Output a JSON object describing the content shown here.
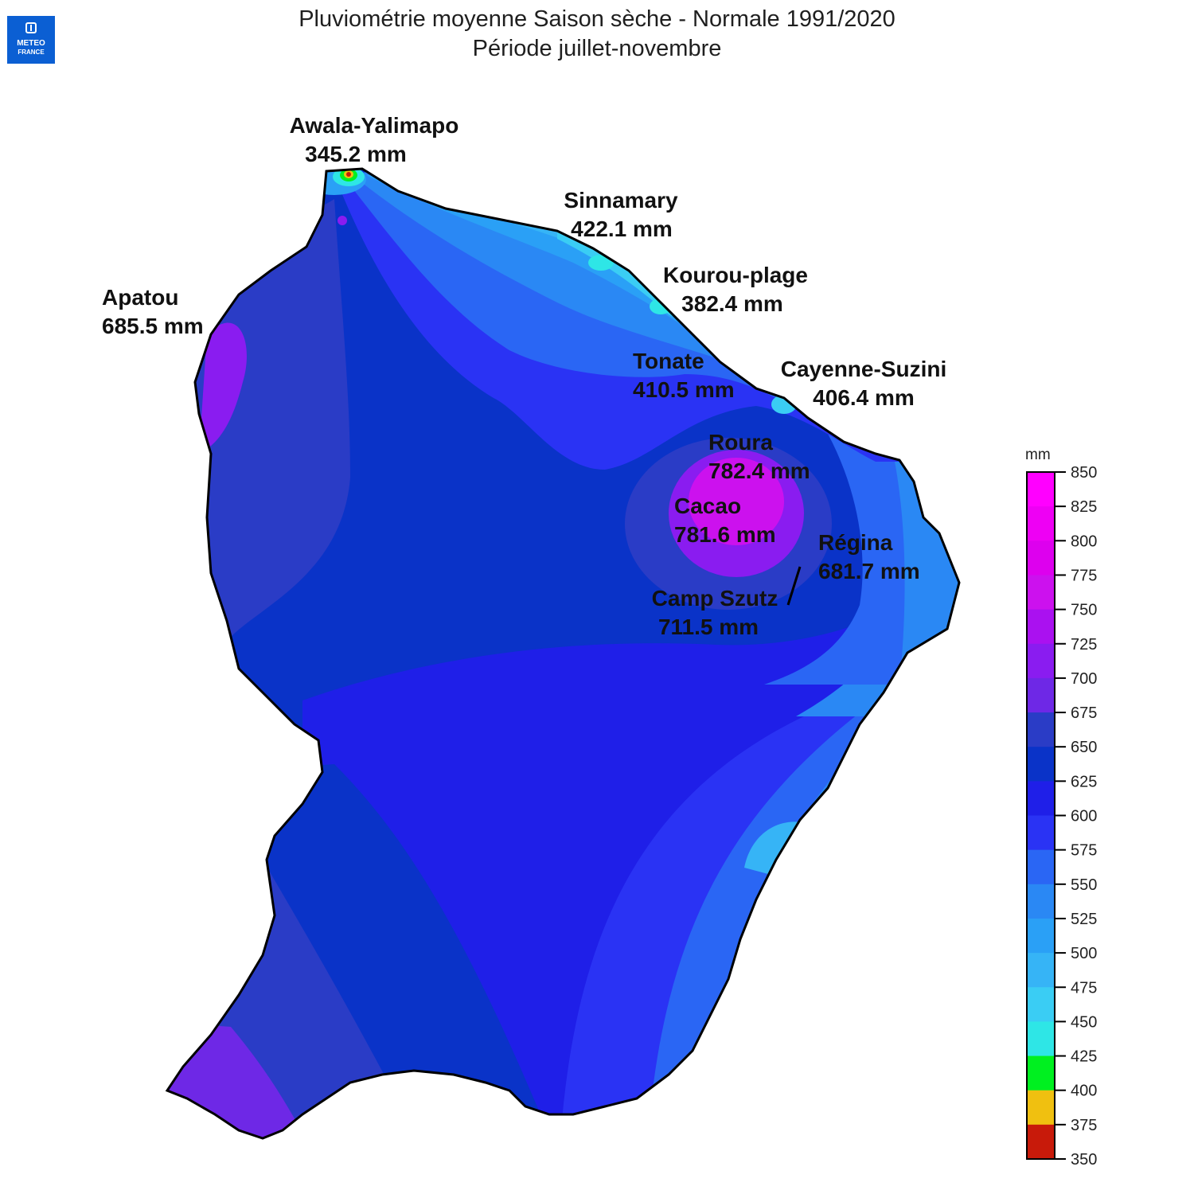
{
  "title": "Pluviométrie moyenne Saison sèche - Normale 1991/2020",
  "subtitle": "Période juillet-novembre",
  "logo": {
    "text_top": "METEO",
    "text_bottom": "FRANCE",
    "color": "#0b5fd3"
  },
  "stations": [
    {
      "name": "Awala-Yalimapo",
      "value": "345.2 mm"
    },
    {
      "name": "Sinnamary",
      "value": "422.1 mm"
    },
    {
      "name": "Kourou-plage",
      "value": "382.4 mm"
    },
    {
      "name": "Apatou",
      "value": "685.5 mm"
    },
    {
      "name": "Tonate",
      "value": "410.5 mm"
    },
    {
      "name": "Cayenne-Suzini",
      "value": "406.4 mm"
    },
    {
      "name": "Roura",
      "value": "782.4 mm"
    },
    {
      "name": "Cacao",
      "value": "781.6 mm"
    },
    {
      "name": "Régina",
      "value": "681.7 mm"
    },
    {
      "name": "Camp Szutz",
      "value": "711.5 mm"
    }
  ],
  "legend": {
    "unit": "mm",
    "ticks": [
      "850",
      "825",
      "800",
      "775",
      "750",
      "725",
      "700",
      "675",
      "650",
      "625",
      "600",
      "575",
      "550",
      "525",
      "500",
      "475",
      "450",
      "425",
      "400",
      "375",
      "350"
    ],
    "colors": [
      "#ff00ff",
      "#ee00f4",
      "#dd00ee",
      "#cc11ee",
      "#aa11f0",
      "#8a1cf0",
      "#6e28e6",
      "#2a3cc6",
      "#0a33c8",
      "#1f1fe8",
      "#2a33f4",
      "#2a66f4",
      "#2a88f4",
      "#2aa0f6",
      "#36b4f6",
      "#3acdf4",
      "#2ee6e6",
      "#00f020",
      "#f0c010",
      "#c81a0a"
    ]
  }
}
